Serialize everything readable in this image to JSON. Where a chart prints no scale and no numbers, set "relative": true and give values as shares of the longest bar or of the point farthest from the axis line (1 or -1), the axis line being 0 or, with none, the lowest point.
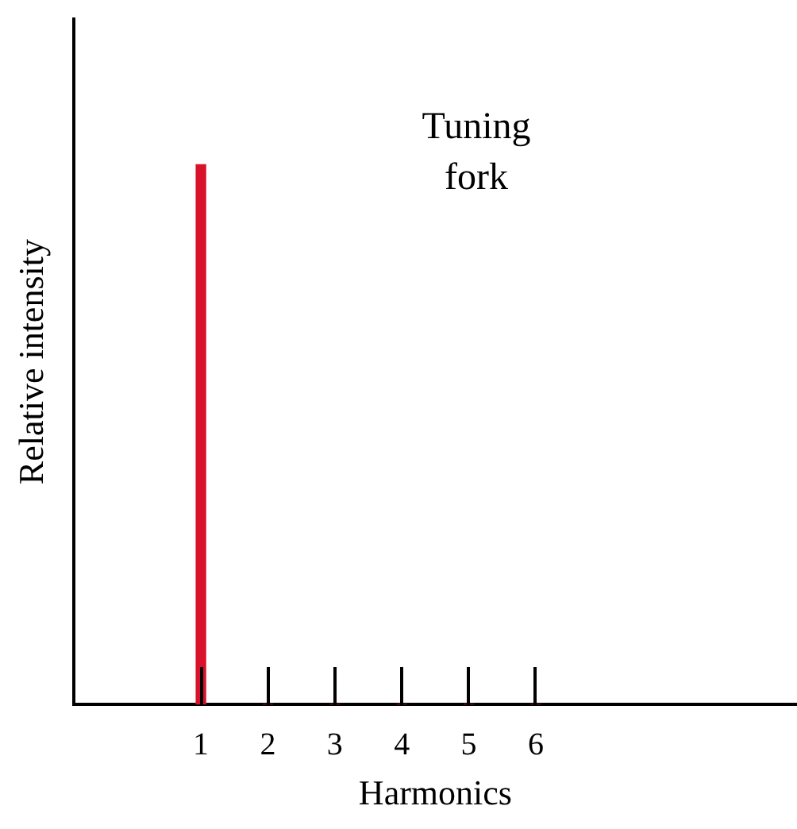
{
  "chart_data": {
    "type": "bar",
    "relative": true,
    "xlabel": "Harmonics",
    "ylabel": "Relative intensity",
    "categories": [
      "1",
      "2",
      "3",
      "4",
      "5",
      "6"
    ],
    "values": [
      1,
      0,
      0,
      0,
      0,
      0
    ],
    "color": "#d9122b",
    "annotations": [
      "Tuning fork"
    ]
  }
}
